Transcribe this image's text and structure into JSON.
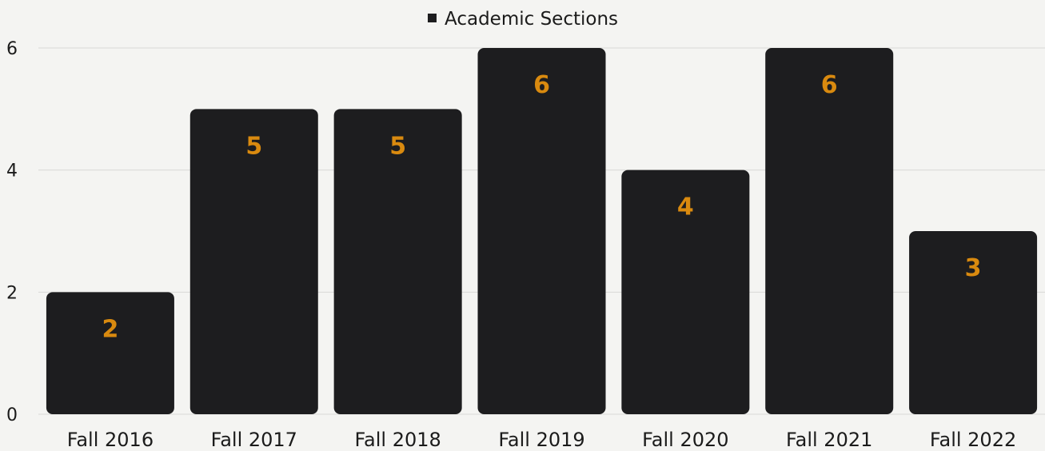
{
  "chart_data": {
    "type": "bar",
    "categories": [
      "Fall 2016",
      "Fall 2017",
      "Fall 2018",
      "Fall 2019",
      "Fall 2020",
      "Fall 2021",
      "Fall 2022"
    ],
    "series": [
      {
        "name": "Academic Sections",
        "values": [
          2,
          5,
          5,
          6,
          4,
          6,
          3
        ]
      }
    ],
    "title": "",
    "xlabel": "",
    "ylabel": "",
    "ylim": [
      0,
      6
    ],
    "yticks": [
      0,
      2,
      4,
      6
    ],
    "grid": true,
    "legend": {
      "position": "top-center",
      "entries": [
        "Academic Sections"
      ]
    },
    "colors": {
      "bars": "#1d1d1f",
      "labels": "#d98a0f",
      "background": "#f4f4f2",
      "grid": "#d8d8d6"
    }
  }
}
